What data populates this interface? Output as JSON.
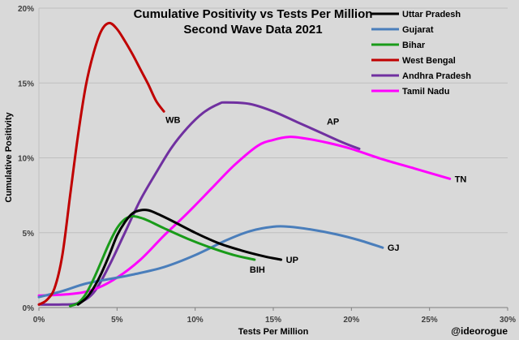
{
  "chart_data": {
    "type": "line",
    "title": "Cumulative Positivity vs Tests Per Million",
    "subtitle": "Second Wave Data 2021",
    "xlabel": "Tests Per Million",
    "ylabel": "Cumulative Positivity",
    "xlim": [
      0,
      30
    ],
    "ylim": [
      0,
      20
    ],
    "x_ticks": [
      "0%",
      "5%",
      "10%",
      "15%",
      "20%",
      "25%",
      "30%"
    ],
    "y_ticks": [
      "0%",
      "5%",
      "10%",
      "15%",
      "20%"
    ],
    "watermark": "@ideorogue",
    "series": [
      {
        "name": "Uttar Pradesh",
        "short": "UP",
        "color": "#000000",
        "x": [
          2.5,
          3.0,
          3.5,
          4.0,
          4.5,
          5.0,
          5.5,
          6.0,
          6.5,
          7.0,
          7.5,
          8.5,
          10.0,
          11.5,
          13.0,
          14.5,
          15.5
        ],
        "y": [
          0.2,
          0.6,
          1.3,
          2.3,
          3.5,
          4.8,
          5.7,
          6.3,
          6.5,
          6.5,
          6.3,
          5.8,
          5.0,
          4.3,
          3.8,
          3.4,
          3.2
        ]
      },
      {
        "name": "Gujarat",
        "short": "GJ",
        "color": "#4a7ebb",
        "x": [
          0,
          1.5,
          3.0,
          4.5,
          6.0,
          8.0,
          10.0,
          12.0,
          13.5,
          15.0,
          16.0,
          17.5,
          19.0,
          20.5,
          22.0
        ],
        "y": [
          0.7,
          1.1,
          1.6,
          1.9,
          2.2,
          2.7,
          3.5,
          4.5,
          5.1,
          5.4,
          5.4,
          5.2,
          4.9,
          4.5,
          4.0
        ]
      },
      {
        "name": "Bihar",
        "short": "BIH",
        "color": "#199b19",
        "x": [
          2.0,
          2.5,
          3.0,
          3.5,
          4.0,
          4.5,
          5.0,
          5.5,
          6.0,
          6.5,
          7.0,
          8.0,
          9.5,
          11.0,
          12.5,
          13.8
        ],
        "y": [
          0.1,
          0.3,
          0.9,
          1.9,
          3.1,
          4.3,
          5.3,
          5.9,
          6.1,
          6.0,
          5.8,
          5.3,
          4.6,
          4.0,
          3.5,
          3.2
        ]
      },
      {
        "name": "West Bengal",
        "short": "WB",
        "color": "#c00000",
        "x": [
          0,
          0.5,
          1.0,
          1.5,
          2.0,
          2.5,
          3.0,
          3.5,
          4.0,
          4.5,
          5.0,
          5.5,
          6.0,
          6.5,
          7.0,
          7.5,
          8.0
        ],
        "y": [
          0.2,
          0.5,
          1.3,
          3.5,
          7.5,
          11.5,
          14.8,
          17.0,
          18.5,
          19.0,
          18.6,
          17.8,
          16.9,
          15.9,
          14.9,
          13.8,
          13.1
        ]
      },
      {
        "name": "Andhra Pradesh",
        "short": "AP",
        "color": "#7030a0",
        "x": [
          0,
          1.5,
          2.5,
          3.5,
          4.5,
          5.5,
          6.5,
          7.5,
          8.5,
          9.5,
          10.5,
          11.5,
          12.0,
          13.5,
          15.0,
          16.5,
          18.0,
          19.5,
          20.5
        ],
        "y": [
          0.2,
          0.2,
          0.3,
          1.0,
          2.8,
          5.0,
          7.2,
          9.0,
          10.7,
          12.0,
          13.0,
          13.6,
          13.7,
          13.6,
          13.1,
          12.4,
          11.7,
          11.0,
          10.6
        ]
      },
      {
        "name": "Tamil Nadu",
        "short": "TN",
        "color": "#ff00ff",
        "x": [
          0,
          2.0,
          3.5,
          5.0,
          6.5,
          8.0,
          9.5,
          11.0,
          12.5,
          14.0,
          15.0,
          16.0,
          17.0,
          18.5,
          20.0,
          22.0,
          24.0,
          26.3
        ],
        "y": [
          0.8,
          0.9,
          1.2,
          2.0,
          3.2,
          4.8,
          6.3,
          7.9,
          9.5,
          10.8,
          11.2,
          11.4,
          11.3,
          11.0,
          10.6,
          9.9,
          9.3,
          8.6
        ]
      }
    ]
  }
}
